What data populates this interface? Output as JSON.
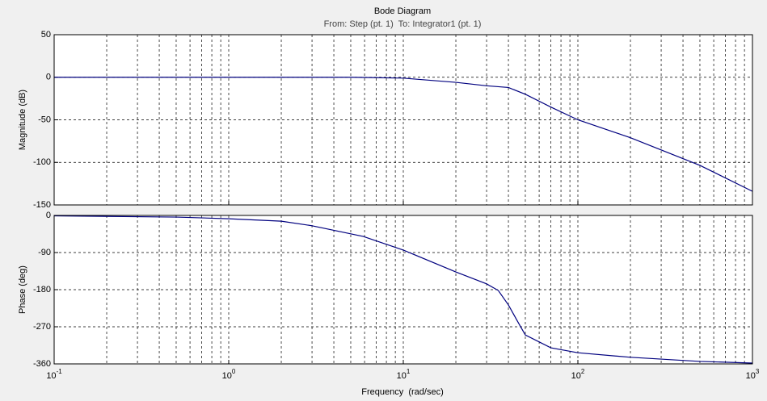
{
  "chart_data": [
    {
      "type": "line",
      "title": "Bode Diagram",
      "subtitle": "From: Step (pt. 1)  To: Integrator1 (pt. 1)",
      "ylabel": "Magnitude (dB)",
      "xscale": "log",
      "grid": true,
      "color": "#00007f",
      "x": [
        0.1,
        1,
        5,
        7,
        10,
        20,
        30,
        40,
        50,
        70,
        100,
        200,
        500,
        1000
      ],
      "values": [
        0,
        0,
        0,
        -0.5,
        -1,
        -6,
        -10,
        -12,
        -20,
        -35,
        -50,
        -71,
        -103.5,
        -134
      ],
      "xlim": [
        0.1,
        1000
      ],
      "xticks": [
        0.1,
        1,
        10,
        100,
        1000
      ],
      "xminorticks": [
        0.2,
        0.3,
        0.4,
        0.5,
        0.6,
        0.7,
        0.8,
        0.9,
        2,
        3,
        4,
        5,
        6,
        7,
        8,
        9,
        20,
        30,
        40,
        50,
        60,
        70,
        80,
        90,
        200,
        300,
        400,
        500,
        600,
        700,
        800,
        900
      ],
      "ylim": [
        -150,
        50
      ],
      "yticks": [
        50,
        0,
        -50,
        -100,
        -150
      ]
    },
    {
      "type": "line",
      "ylabel": "Phase (deg)",
      "xlabel": "Frequency  (rad/sec)",
      "xscale": "log",
      "grid": true,
      "color": "#00007f",
      "x": [
        0.1,
        0.5,
        1,
        2,
        3,
        5.9,
        10,
        20,
        30,
        35,
        40,
        45,
        50,
        70,
        100,
        200,
        500,
        1000
      ],
      "values": [
        -1,
        -4,
        -8,
        -14,
        -25,
        -51,
        -84,
        -137,
        -166,
        -182,
        -217,
        -256,
        -290,
        -321,
        -333,
        -344,
        -354,
        -358
      ],
      "xlim": [
        0.1,
        1000
      ],
      "xticks": [
        {
          "value": 0.1,
          "label": "10",
          "exponent": "-1"
        },
        {
          "value": 1,
          "label": "10",
          "exponent": "0"
        },
        {
          "value": 10,
          "label": "10",
          "exponent": "1"
        },
        {
          "value": 100,
          "label": "10",
          "exponent": "2"
        },
        {
          "value": 1000,
          "label": "10",
          "exponent": "3"
        }
      ],
      "xminorticks": [
        0.2,
        0.3,
        0.4,
        0.5,
        0.6,
        0.7,
        0.8,
        0.9,
        2,
        3,
        4,
        5,
        6,
        7,
        8,
        9,
        20,
        30,
        40,
        50,
        60,
        70,
        80,
        90,
        200,
        300,
        400,
        500,
        600,
        700,
        800,
        900
      ],
      "ylim": [
        -360,
        0
      ],
      "yticks": [
        0,
        -90,
        -180,
        -270,
        -360
      ]
    }
  ]
}
